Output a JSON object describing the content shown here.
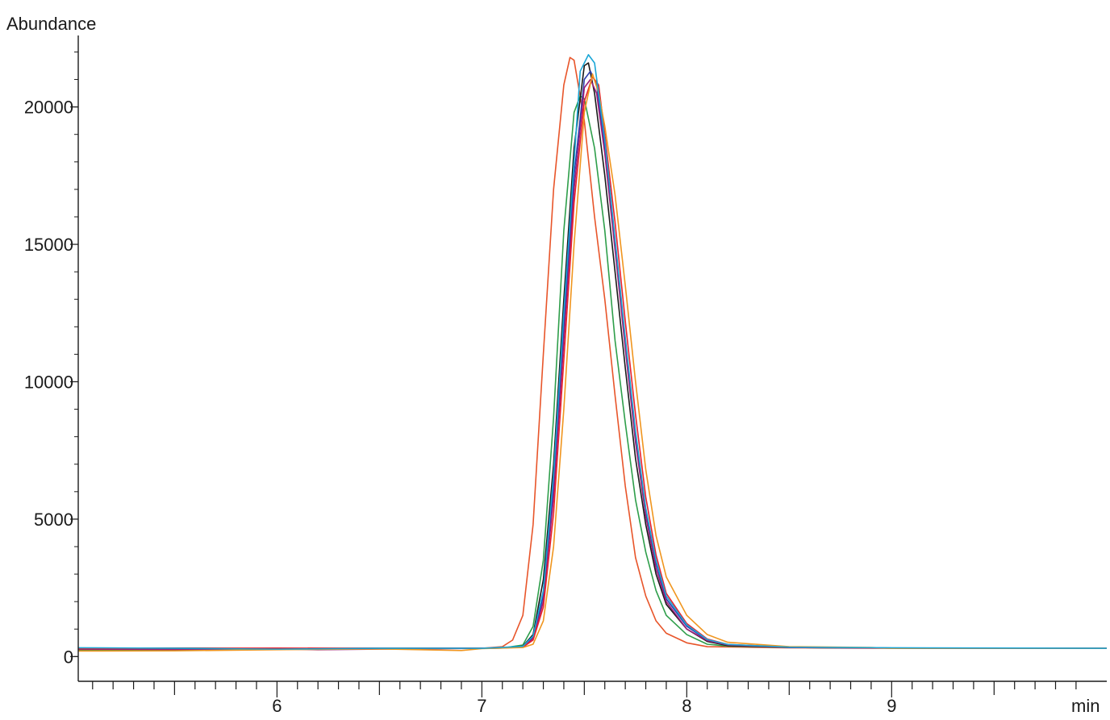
{
  "chart_data": {
    "type": "line",
    "ylabel": "Abundance",
    "xlabel": "min",
    "xlim": [
      5.03,
      10.05
    ],
    "ylim": [
      -900,
      22600
    ],
    "x_ticks": [
      6,
      7,
      8,
      9
    ],
    "x_tick_labels": [
      "6",
      "7",
      "8",
      "9"
    ],
    "x_minor_step": 0.1,
    "y_ticks": [
      0,
      5000,
      10000,
      15000,
      20000
    ],
    "y_tick_labels": [
      "0",
      "5000",
      "10000",
      "15000",
      "20000"
    ],
    "y_minor_step": 1000,
    "grid": false,
    "legend": "none",
    "series": [
      {
        "color": "#e8552a",
        "points": [
          [
            5.03,
            220
          ],
          [
            5.5,
            230
          ],
          [
            6.0,
            260
          ],
          [
            6.5,
            290
          ],
          [
            7.0,
            300
          ],
          [
            7.1,
            360
          ],
          [
            7.15,
            600
          ],
          [
            7.2,
            1500
          ],
          [
            7.25,
            4800
          ],
          [
            7.3,
            11000
          ],
          [
            7.35,
            17000
          ],
          [
            7.4,
            20800
          ],
          [
            7.43,
            21800
          ],
          [
            7.45,
            21700
          ],
          [
            7.5,
            19500
          ],
          [
            7.55,
            16000
          ],
          [
            7.6,
            13000
          ],
          [
            7.65,
            9500
          ],
          [
            7.7,
            6200
          ],
          [
            7.75,
            3600
          ],
          [
            7.8,
            2200
          ],
          [
            7.85,
            1300
          ],
          [
            7.9,
            850
          ],
          [
            8.0,
            500
          ],
          [
            8.1,
            360
          ],
          [
            8.5,
            320
          ],
          [
            9.0,
            300
          ],
          [
            10.05,
            300
          ]
        ]
      },
      {
        "color": "#2e9e4a",
        "points": [
          [
            5.03,
            250
          ],
          [
            5.5,
            240
          ],
          [
            6.0,
            280
          ],
          [
            6.5,
            300
          ],
          [
            7.0,
            300
          ],
          [
            7.1,
            310
          ],
          [
            7.2,
            420
          ],
          [
            7.25,
            1100
          ],
          [
            7.3,
            3500
          ],
          [
            7.35,
            8700
          ],
          [
            7.4,
            15500
          ],
          [
            7.45,
            19800
          ],
          [
            7.48,
            20400
          ],
          [
            7.5,
            20300
          ],
          [
            7.55,
            18500
          ],
          [
            7.6,
            15500
          ],
          [
            7.65,
            11500
          ],
          [
            7.7,
            8500
          ],
          [
            7.75,
            5700
          ],
          [
            7.8,
            3800
          ],
          [
            7.85,
            2400
          ],
          [
            7.9,
            1500
          ],
          [
            8.0,
            800
          ],
          [
            8.1,
            450
          ],
          [
            8.2,
            380
          ],
          [
            8.5,
            330
          ],
          [
            9.0,
            310
          ],
          [
            10.05,
            300
          ]
        ]
      },
      {
        "color": "#1a1a1a",
        "points": [
          [
            5.03,
            300
          ],
          [
            5.5,
            310
          ],
          [
            6.0,
            290
          ],
          [
            6.5,
            300
          ],
          [
            7.0,
            300
          ],
          [
            7.1,
            310
          ],
          [
            7.2,
            380
          ],
          [
            7.25,
            800
          ],
          [
            7.3,
            2800
          ],
          [
            7.35,
            7000
          ],
          [
            7.4,
            13000
          ],
          [
            7.45,
            18500
          ],
          [
            7.5,
            21500
          ],
          [
            7.52,
            21600
          ],
          [
            7.55,
            20500
          ],
          [
            7.6,
            17500
          ],
          [
            7.65,
            14000
          ],
          [
            7.7,
            10500
          ],
          [
            7.75,
            7200
          ],
          [
            7.8,
            4800
          ],
          [
            7.85,
            3000
          ],
          [
            7.9,
            1900
          ],
          [
            8.0,
            1000
          ],
          [
            8.1,
            550
          ],
          [
            8.2,
            400
          ],
          [
            8.5,
            330
          ],
          [
            9.0,
            310
          ],
          [
            10.05,
            300
          ]
        ]
      },
      {
        "color": "#2f3fae",
        "points": [
          [
            5.03,
            280
          ],
          [
            5.5,
            260
          ],
          [
            6.0,
            290
          ],
          [
            6.5,
            300
          ],
          [
            7.0,
            300
          ],
          [
            7.1,
            310
          ],
          [
            7.2,
            370
          ],
          [
            7.25,
            700
          ],
          [
            7.3,
            2200
          ],
          [
            7.35,
            6200
          ],
          [
            7.4,
            12000
          ],
          [
            7.45,
            17500
          ],
          [
            7.5,
            21000
          ],
          [
            7.53,
            21300
          ],
          [
            7.56,
            20800
          ],
          [
            7.6,
            18500
          ],
          [
            7.65,
            15000
          ],
          [
            7.7,
            11500
          ],
          [
            7.75,
            8000
          ],
          [
            7.8,
            5300
          ],
          [
            7.85,
            3400
          ],
          [
            7.9,
            2100
          ],
          [
            8.0,
            1100
          ],
          [
            8.1,
            600
          ],
          [
            8.2,
            430
          ],
          [
            8.5,
            340
          ],
          [
            9.0,
            310
          ],
          [
            10.05,
            300
          ]
        ]
      },
      {
        "color": "#9b1f7a",
        "points": [
          [
            5.03,
            270
          ],
          [
            5.5,
            260
          ],
          [
            6.0,
            280
          ],
          [
            6.2,
            250
          ],
          [
            6.5,
            270
          ],
          [
            7.0,
            300
          ],
          [
            7.2,
            350
          ],
          [
            7.25,
            650
          ],
          [
            7.3,
            2000
          ],
          [
            7.35,
            5800
          ],
          [
            7.4,
            11500
          ],
          [
            7.45,
            17000
          ],
          [
            7.5,
            20700
          ],
          [
            7.53,
            21000
          ],
          [
            7.56,
            20500
          ],
          [
            7.6,
            18300
          ],
          [
            7.65,
            14800
          ],
          [
            7.7,
            11200
          ],
          [
            7.75,
            7800
          ],
          [
            7.8,
            5100
          ],
          [
            7.85,
            3200
          ],
          [
            7.9,
            2000
          ],
          [
            8.0,
            1000
          ],
          [
            8.1,
            580
          ],
          [
            8.2,
            420
          ],
          [
            8.5,
            330
          ],
          [
            9.0,
            310
          ],
          [
            10.05,
            300
          ]
        ]
      },
      {
        "color": "#e8222e",
        "points": [
          [
            5.03,
            290
          ],
          [
            5.5,
            300
          ],
          [
            6.0,
            310
          ],
          [
            6.5,
            300
          ],
          [
            7.0,
            300
          ],
          [
            7.2,
            340
          ],
          [
            7.25,
            600
          ],
          [
            7.3,
            1800
          ],
          [
            7.35,
            5200
          ],
          [
            7.4,
            10800
          ],
          [
            7.45,
            16500
          ],
          [
            7.5,
            20200
          ],
          [
            7.54,
            21100
          ],
          [
            7.57,
            20800
          ],
          [
            7.6,
            19000
          ],
          [
            7.65,
            15800
          ],
          [
            7.7,
            12200
          ],
          [
            7.75,
            8800
          ],
          [
            7.8,
            5800
          ],
          [
            7.85,
            3700
          ],
          [
            7.9,
            2300
          ],
          [
            8.0,
            1200
          ],
          [
            8.1,
            640
          ],
          [
            8.2,
            440
          ],
          [
            8.5,
            340
          ],
          [
            9.0,
            310
          ],
          [
            10.05,
            300
          ]
        ]
      },
      {
        "color": "#f0951e",
        "points": [
          [
            5.03,
            200
          ],
          [
            5.5,
            210
          ],
          [
            6.0,
            250
          ],
          [
            6.5,
            280
          ],
          [
            6.9,
            220
          ],
          [
            7.0,
            290
          ],
          [
            7.2,
            330
          ],
          [
            7.25,
            450
          ],
          [
            7.3,
            1300
          ],
          [
            7.35,
            4000
          ],
          [
            7.4,
            9000
          ],
          [
            7.45,
            15000
          ],
          [
            7.5,
            19800
          ],
          [
            7.54,
            21200
          ],
          [
            7.57,
            20500
          ],
          [
            7.6,
            19300
          ],
          [
            7.65,
            16800
          ],
          [
            7.7,
            13500
          ],
          [
            7.75,
            10000
          ],
          [
            7.8,
            6800
          ],
          [
            7.85,
            4400
          ],
          [
            7.9,
            2900
          ],
          [
            8.0,
            1500
          ],
          [
            8.1,
            800
          ],
          [
            8.2,
            520
          ],
          [
            8.5,
            360
          ],
          [
            8.9,
            330
          ],
          [
            9.0,
            300
          ],
          [
            10.05,
            300
          ]
        ]
      },
      {
        "color": "#1aa6d6",
        "points": [
          [
            5.03,
            320
          ],
          [
            5.5,
            300
          ],
          [
            6.0,
            270
          ],
          [
            6.5,
            300
          ],
          [
            7.0,
            300
          ],
          [
            7.2,
            370
          ],
          [
            7.25,
            750
          ],
          [
            7.3,
            2400
          ],
          [
            7.35,
            6600
          ],
          [
            7.4,
            12500
          ],
          [
            7.45,
            18000
          ],
          [
            7.48,
            21300
          ],
          [
            7.52,
            21900
          ],
          [
            7.55,
            21600
          ],
          [
            7.6,
            18800
          ],
          [
            7.65,
            15200
          ],
          [
            7.7,
            11600
          ],
          [
            7.75,
            8200
          ],
          [
            7.8,
            5400
          ],
          [
            7.85,
            3500
          ],
          [
            7.9,
            2200
          ],
          [
            8.0,
            1150
          ],
          [
            8.1,
            620
          ],
          [
            8.2,
            440
          ],
          [
            8.5,
            340
          ],
          [
            9.0,
            320
          ],
          [
            10.05,
            300
          ]
        ]
      }
    ]
  }
}
